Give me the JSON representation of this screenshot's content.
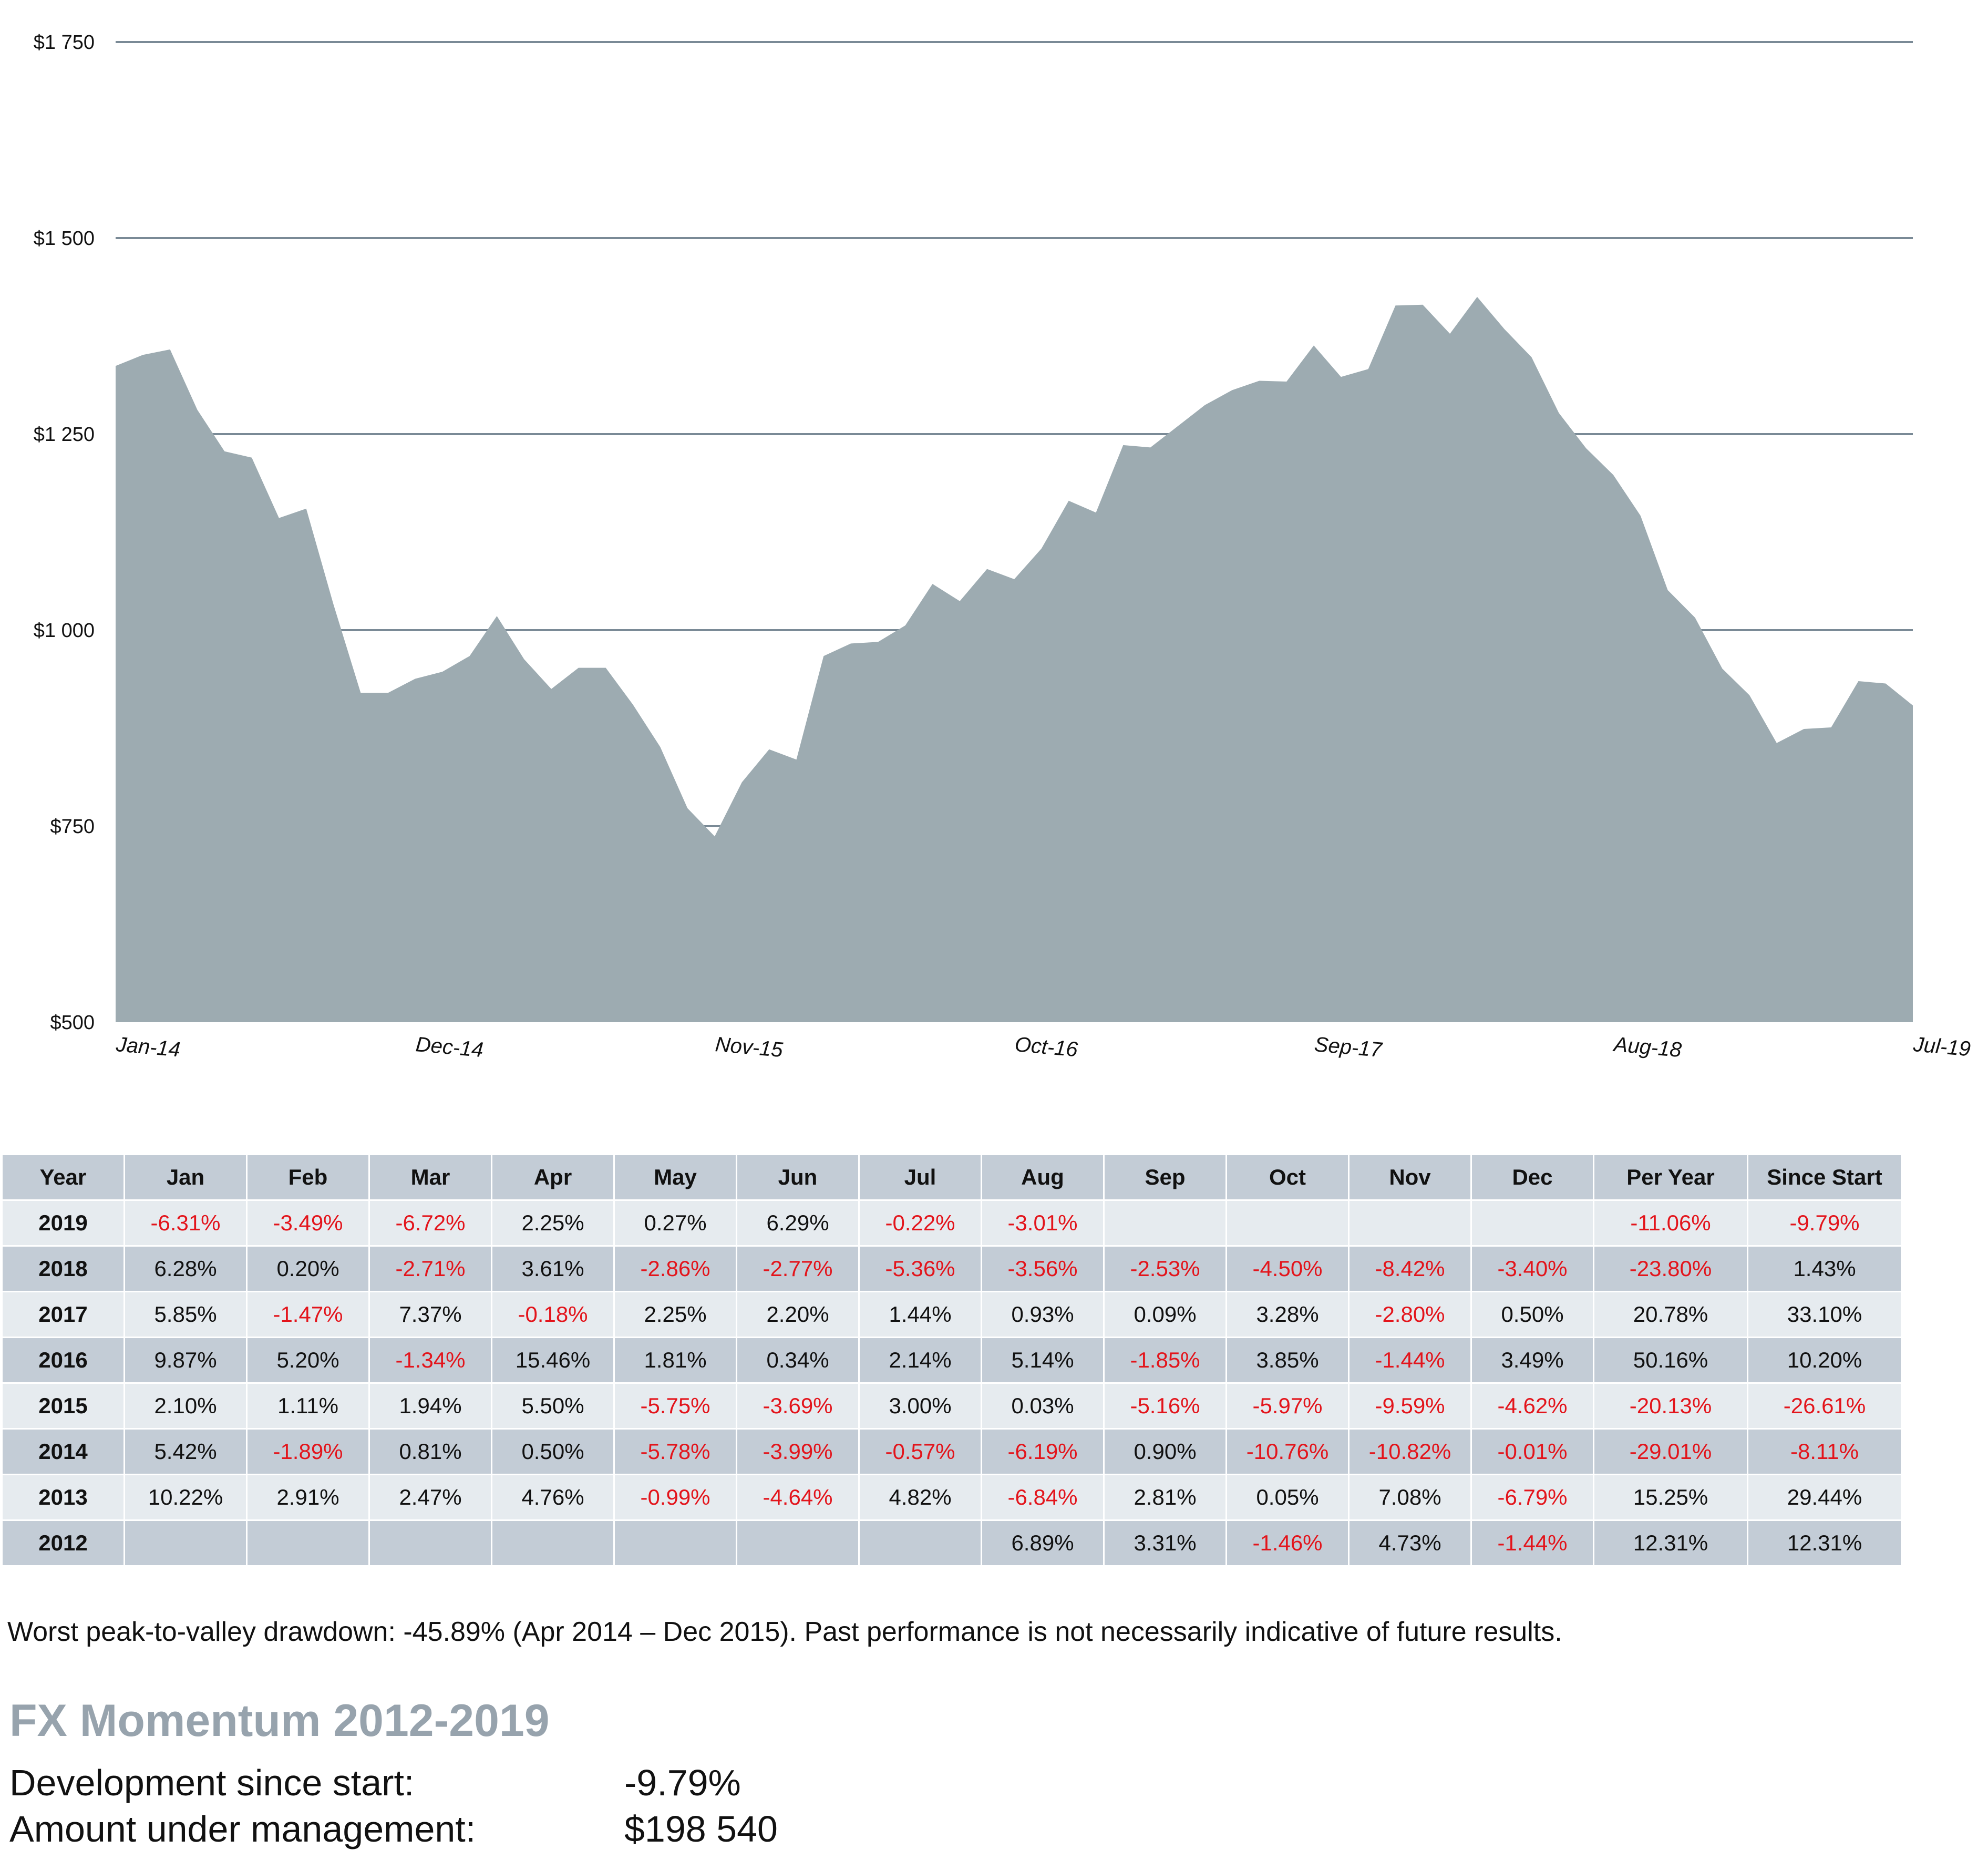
{
  "chart_data": {
    "type": "area",
    "series_color": "#9dabb1",
    "grid_color": "#7a8a96",
    "ylim": [
      500,
      1750
    ],
    "yticks": [
      500,
      750,
      1000,
      1250,
      1500,
      1750
    ],
    "ytick_labels": [
      "$500",
      "$750",
      "$1 000",
      "$1 250",
      "$1 500",
      "$1 750"
    ],
    "x_tick_labels": [
      "Jan-14",
      "Dec-14",
      "Nov-15",
      "Oct-16",
      "Sep-17",
      "Aug-18",
      "Jul-19"
    ],
    "x_tick_positions": [
      "Jan-14",
      "Dec-14",
      "Nov-15",
      "Oct-16",
      "Sep-17",
      "Aug-18",
      "Jul-19"
    ],
    "x": [
      "Jan-14",
      "Feb-14",
      "Mar-14",
      "Apr-14",
      "May-14",
      "Jun-14",
      "Jul-14",
      "Aug-14",
      "Sep-14",
      "Oct-14",
      "Nov-14",
      "Dec-14",
      "Jan-15",
      "Feb-15",
      "Mar-15",
      "Apr-15",
      "May-15",
      "Jun-15",
      "Jul-15",
      "Aug-15",
      "Sep-15",
      "Oct-15",
      "Nov-15",
      "Dec-15",
      "Jan-16",
      "Feb-16",
      "Mar-16",
      "Apr-16",
      "May-16",
      "Jun-16",
      "Jul-16",
      "Aug-16",
      "Sep-16",
      "Oct-16",
      "Nov-16",
      "Dec-16",
      "Jan-17",
      "Feb-17",
      "Mar-17",
      "Apr-17",
      "May-17",
      "Jun-17",
      "Jul-17",
      "Aug-17",
      "Sep-17",
      "Oct-17",
      "Nov-17",
      "Dec-17",
      "Jan-18",
      "Feb-18",
      "Mar-18",
      "Apr-18",
      "May-18",
      "Jun-18",
      "Jul-18",
      "Aug-18",
      "Sep-18",
      "Oct-18",
      "Nov-18",
      "Dec-18",
      "Jan-19",
      "Feb-19",
      "Mar-19",
      "Apr-19",
      "May-19",
      "Jun-19",
      "Jul-19"
    ],
    "values": [
      1337,
      1351,
      1358,
      1281,
      1228,
      1220,
      1143,
      1155,
      1033,
      920,
      920,
      938,
      947,
      967,
      1018,
      963,
      925,
      952,
      952,
      905,
      851,
      773,
      737,
      806,
      848,
      835,
      967,
      983,
      985,
      1006,
      1059,
      1037,
      1078,
      1065,
      1104,
      1165,
      1150,
      1236,
      1233,
      1260,
      1287,
      1306,
      1318,
      1317,
      1363,
      1323,
      1333,
      1414,
      1415,
      1378,
      1425,
      1384,
      1348,
      1277,
      1232,
      1198,
      1146,
      1051,
      1016,
      951,
      917,
      856,
      874,
      876,
      935,
      932,
      904
    ]
  },
  "table": {
    "headers": [
      "Year",
      "Jan",
      "Feb",
      "Mar",
      "Apr",
      "May",
      "Jun",
      "Jul",
      "Aug",
      "Sep",
      "Oct",
      "Nov",
      "Dec",
      "Per Year",
      "Since Start"
    ],
    "rows": [
      {
        "year": "2019",
        "cells": [
          "-6.31%",
          "-3.49%",
          "-6.72%",
          "2.25%",
          "0.27%",
          "6.29%",
          "-0.22%",
          "-3.01%",
          "",
          "",
          "",
          "",
          "-11.06%",
          "-9.79%"
        ]
      },
      {
        "year": "2018",
        "cells": [
          "6.28%",
          "0.20%",
          "-2.71%",
          "3.61%",
          "-2.86%",
          "-2.77%",
          "-5.36%",
          "-3.56%",
          "-2.53%",
          "-4.50%",
          "-8.42%",
          "-3.40%",
          "-23.80%",
          "1.43%"
        ]
      },
      {
        "year": "2017",
        "cells": [
          "5.85%",
          "-1.47%",
          "7.37%",
          "-0.18%",
          "2.25%",
          "2.20%",
          "1.44%",
          "0.93%",
          "0.09%",
          "3.28%",
          "-2.80%",
          "0.50%",
          "20.78%",
          "33.10%"
        ]
      },
      {
        "year": "2016",
        "cells": [
          "9.87%",
          "5.20%",
          "-1.34%",
          "15.46%",
          "1.81%",
          "0.34%",
          "2.14%",
          "5.14%",
          "-1.85%",
          "3.85%",
          "-1.44%",
          "3.49%",
          "50.16%",
          "10.20%"
        ]
      },
      {
        "year": "2015",
        "cells": [
          "2.10%",
          "1.11%",
          "1.94%",
          "5.50%",
          "-5.75%",
          "-3.69%",
          "3.00%",
          "0.03%",
          "-5.16%",
          "-5.97%",
          "-9.59%",
          "-4.62%",
          "-20.13%",
          "-26.61%"
        ]
      },
      {
        "year": "2014",
        "cells": [
          "5.42%",
          "-1.89%",
          "0.81%",
          "0.50%",
          "-5.78%",
          "-3.99%",
          "-0.57%",
          "-6.19%",
          "0.90%",
          "-10.76%",
          "-10.82%",
          "-0.01%",
          "-29.01%",
          "-8.11%"
        ]
      },
      {
        "year": "2013",
        "cells": [
          "10.22%",
          "2.91%",
          "2.47%",
          "4.76%",
          "-0.99%",
          "-4.64%",
          "4.82%",
          "-6.84%",
          "2.81%",
          "0.05%",
          "7.08%",
          "-6.79%",
          "15.25%",
          "29.44%"
        ]
      },
      {
        "year": "2012",
        "cells": [
          "",
          "",
          "",
          "",
          "",
          "",
          "",
          "6.89%",
          "3.31%",
          "-1.46%",
          "4.73%",
          "-1.44%",
          "12.31%",
          "12.31%"
        ]
      }
    ],
    "negative_color": "#e3141b"
  },
  "disclaimer": "Worst peak-to-valley drawdown: -45.89% (Apr 2014 – Dec 2015). Past performance is not necessarily indicative of future results.",
  "fund": {
    "title": "FX Momentum 2012-2019",
    "development_label": "Development since start:",
    "development_value": "-9.79%",
    "aum_label": "Amount under management:",
    "aum_value": "$198 540"
  }
}
